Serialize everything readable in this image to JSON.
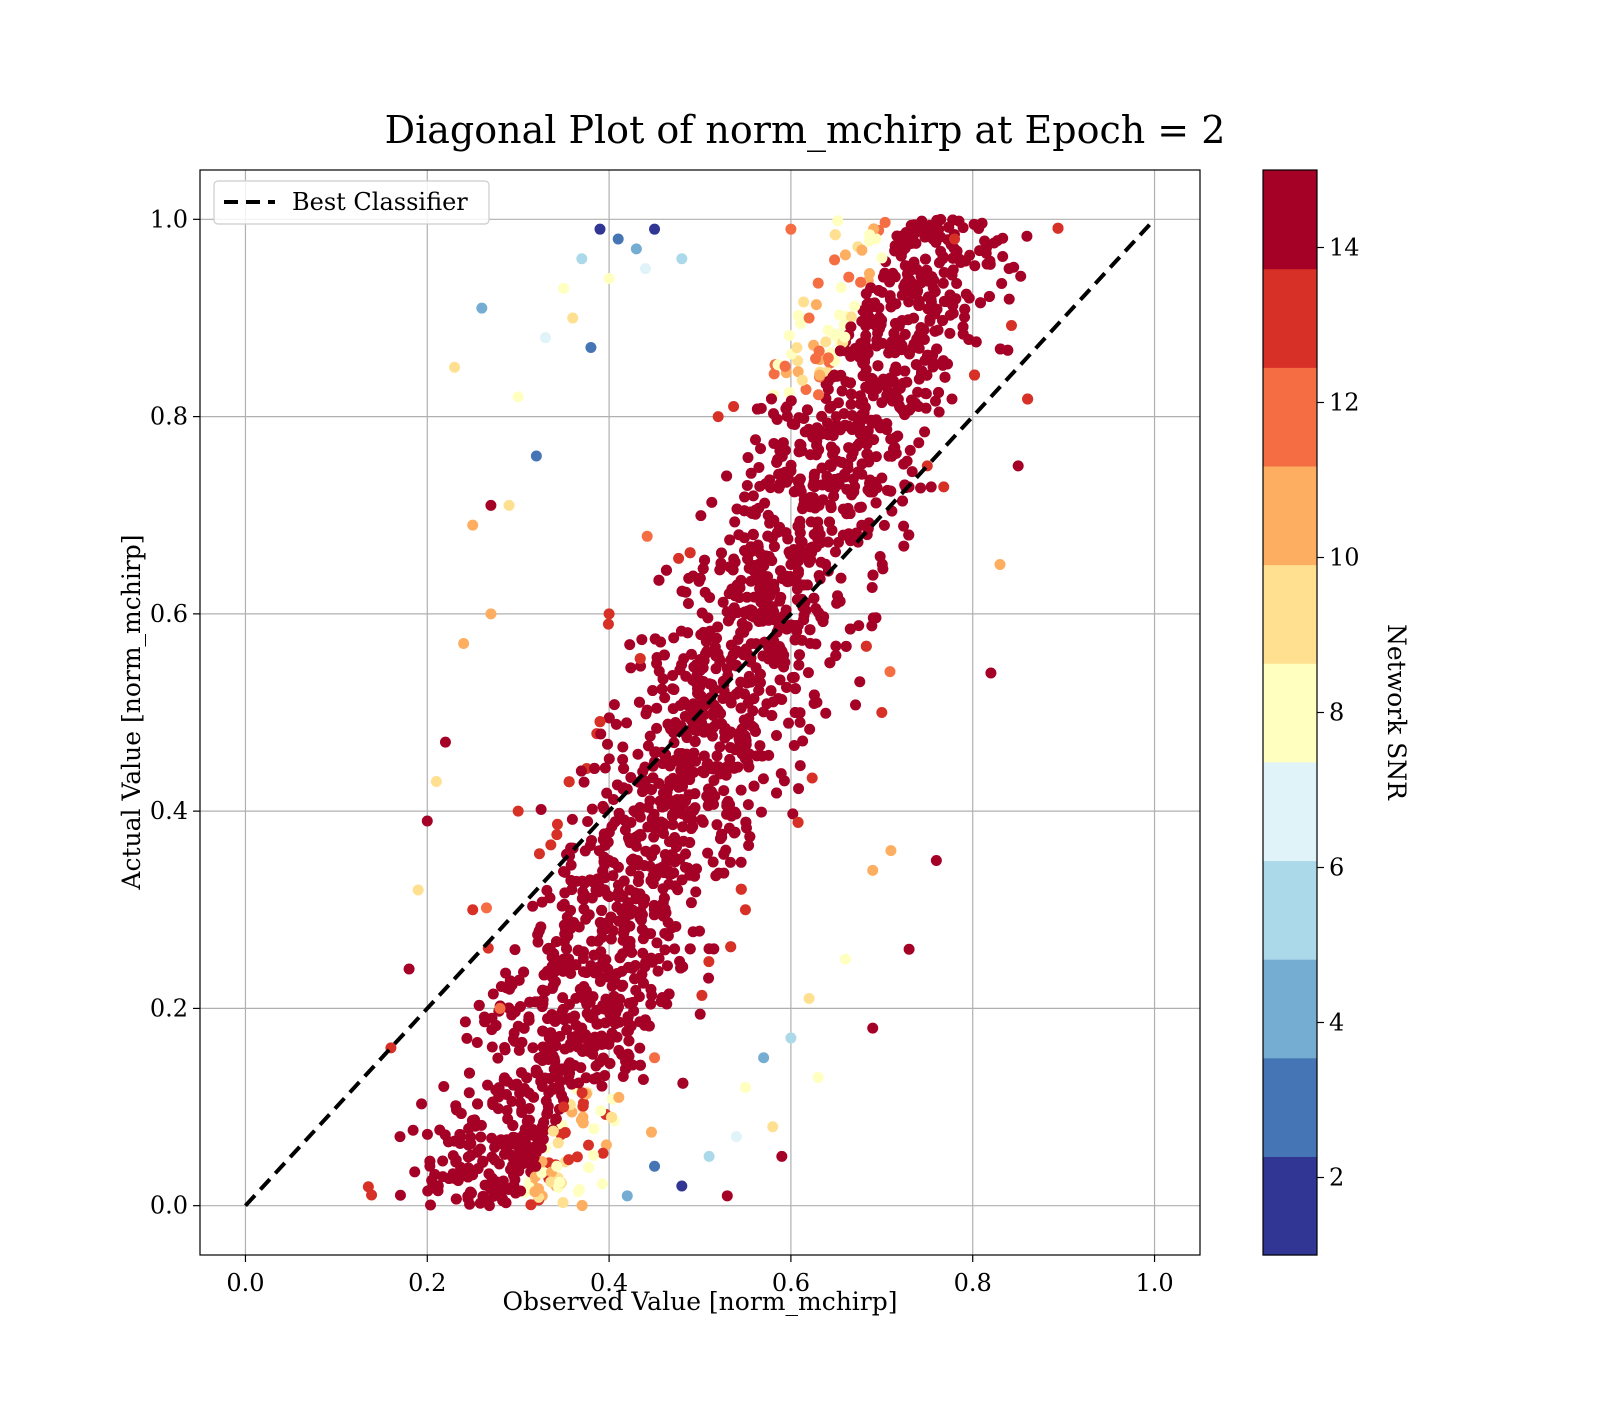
{
  "chart_data": {
    "type": "scatter",
    "title": "Diagonal Plot of norm_mchirp at Epoch = 2",
    "xlabel": "Observed Value [norm_mchirp]",
    "ylabel": "Actual Value [norm_mchirp]",
    "xlim": [
      -0.05,
      1.05
    ],
    "ylim": [
      -0.05,
      1.05
    ],
    "xticks": [
      0.0,
      0.2,
      0.4,
      0.6,
      0.8,
      1.0
    ],
    "xtick_labels": [
      "0.0",
      "0.2",
      "0.4",
      "0.6",
      "0.8",
      "1.0"
    ],
    "yticks": [
      0.0,
      0.2,
      0.4,
      0.6,
      0.8,
      1.0
    ],
    "ytick_labels": [
      "0.0",
      "0.2",
      "0.4",
      "0.6",
      "0.8",
      "1.0"
    ],
    "grid": true,
    "legend": {
      "placement": "upper-left",
      "entries": [
        {
          "label": "Best Classifier",
          "style": "dashed",
          "color": "#000000"
        }
      ]
    },
    "reference_line": {
      "name": "Best Classifier",
      "x": [
        0.0,
        1.0
      ],
      "y": [
        0.0,
        1.0
      ]
    },
    "colorbar": {
      "label": "Network SNR",
      "range": [
        1,
        15
      ],
      "ticks": [
        2,
        4,
        6,
        8,
        10,
        12,
        14
      ],
      "tick_labels": [
        "2",
        "4",
        "6",
        "8",
        "10",
        "12",
        "14"
      ],
      "colors": [
        "#313695",
        "#4575b4",
        "#74add1",
        "#abd9e9",
        "#e0f3f8",
        "#ffffbf",
        "#fee090",
        "#fdae61",
        "#f46d43",
        "#d73027",
        "#a50026"
      ],
      "cmap": "RdYlBu_r"
    },
    "points": [
      {
        "x": 0.39,
        "y": 0.99,
        "snr": 1.5
      },
      {
        "x": 0.41,
        "y": 0.98,
        "snr": 3.5
      },
      {
        "x": 0.43,
        "y": 0.97,
        "snr": 4.5
      },
      {
        "x": 0.45,
        "y": 0.99,
        "snr": 2.0
      },
      {
        "x": 0.37,
        "y": 0.96,
        "snr": 5.0
      },
      {
        "x": 0.44,
        "y": 0.95,
        "snr": 6.5
      },
      {
        "x": 0.4,
        "y": 0.94,
        "snr": 7.5
      },
      {
        "x": 0.35,
        "y": 0.93,
        "snr": 8.5
      },
      {
        "x": 0.48,
        "y": 0.96,
        "snr": 5.5
      },
      {
        "x": 0.36,
        "y": 0.9,
        "snr": 9.0
      },
      {
        "x": 0.33,
        "y": 0.88,
        "snr": 7.0
      },
      {
        "x": 0.38,
        "y": 0.87,
        "snr": 3.0
      },
      {
        "x": 0.26,
        "y": 0.91,
        "snr": 4.0
      },
      {
        "x": 0.23,
        "y": 0.85,
        "snr": 9.0
      },
      {
        "x": 0.3,
        "y": 0.82,
        "snr": 7.5
      },
      {
        "x": 0.32,
        "y": 0.76,
        "snr": 2.5
      },
      {
        "x": 0.29,
        "y": 0.71,
        "snr": 9.5
      },
      {
        "x": 0.25,
        "y": 0.69,
        "snr": 10.0
      },
      {
        "x": 0.27,
        "y": 0.6,
        "snr": 10.5
      },
      {
        "x": 0.24,
        "y": 0.57,
        "snr": 11.0
      },
      {
        "x": 0.21,
        "y": 0.43,
        "snr": 9.0
      },
      {
        "x": 0.19,
        "y": 0.32,
        "snr": 9.5
      },
      {
        "x": 0.45,
        "y": 0.04,
        "snr": 3.5
      },
      {
        "x": 0.48,
        "y": 0.02,
        "snr": 2.0
      },
      {
        "x": 0.51,
        "y": 0.05,
        "snr": 5.5
      },
      {
        "x": 0.54,
        "y": 0.07,
        "snr": 6.5
      },
      {
        "x": 0.55,
        "y": 0.12,
        "snr": 7.5
      },
      {
        "x": 0.57,
        "y": 0.15,
        "snr": 4.5
      },
      {
        "x": 0.6,
        "y": 0.17,
        "snr": 6.0
      },
      {
        "x": 0.63,
        "y": 0.13,
        "snr": 8.0
      },
      {
        "x": 0.62,
        "y": 0.21,
        "snr": 9.0
      },
      {
        "x": 0.66,
        "y": 0.25,
        "snr": 8.5
      },
      {
        "x": 0.69,
        "y": 0.34,
        "snr": 10.0
      },
      {
        "x": 0.71,
        "y": 0.36,
        "snr": 10.5
      },
      {
        "x": 0.58,
        "y": 0.08,
        "snr": 9.5
      },
      {
        "x": 0.42,
        "y": 0.01,
        "snr": 4.0
      },
      {
        "x": 0.84,
        "y": 0.95,
        "snr": 14.5
      },
      {
        "x": 0.85,
        "y": 0.75,
        "snr": 14.5
      },
      {
        "x": 0.83,
        "y": 0.65,
        "snr": 10.5
      },
      {
        "x": 0.82,
        "y": 0.54,
        "snr": 14.5
      },
      {
        "x": 0.76,
        "y": 0.35,
        "snr": 14.5
      },
      {
        "x": 0.73,
        "y": 0.26,
        "snr": 14.5
      },
      {
        "x": 0.69,
        "y": 0.18,
        "snr": 14.5
      },
      {
        "x": 0.59,
        "y": 0.05,
        "snr": 14.5
      },
      {
        "x": 0.53,
        "y": 0.01,
        "snr": 14.5
      },
      {
        "x": 0.17,
        "y": 0.07,
        "snr": 14.5
      },
      {
        "x": 0.16,
        "y": 0.16,
        "snr": 13.0
      },
      {
        "x": 0.18,
        "y": 0.24,
        "snr": 14.5
      },
      {
        "x": 0.2,
        "y": 0.39,
        "snr": 14.5
      },
      {
        "x": 0.22,
        "y": 0.47,
        "snr": 14.5
      },
      {
        "x": 0.27,
        "y": 0.71,
        "snr": 14.5
      },
      {
        "x": 0.78,
        "y": 0.98,
        "snr": 12.5
      },
      {
        "x": 0.74,
        "y": 0.99,
        "snr": 14.5
      },
      {
        "x": 0.6,
        "y": 0.99,
        "snr": 11.5
      },
      {
        "x": 0.28,
        "y": 0.2,
        "snr": 12.0
      },
      {
        "x": 0.3,
        "y": 0.4,
        "snr": 13.0
      },
      {
        "x": 0.4,
        "y": 0.6,
        "snr": 12.5
      },
      {
        "x": 0.52,
        "y": 0.8,
        "snr": 13.0
      },
      {
        "x": 0.62,
        "y": 0.9,
        "snr": 12.0
      },
      {
        "x": 0.7,
        "y": 0.5,
        "snr": 13.0
      },
      {
        "x": 0.55,
        "y": 0.3,
        "snr": 12.5
      },
      {
        "x": 0.45,
        "y": 0.15,
        "snr": 12.0
      },
      {
        "x": 0.35,
        "y": 0.1,
        "snr": 13.0
      },
      {
        "x": 0.25,
        "y": 0.3,
        "snr": 12.5
      },
      {
        "x": 0.75,
        "y": 0.75,
        "snr": 13.0
      },
      {
        "x": 0.5,
        "y": 0.5,
        "snr": 14.5
      },
      {
        "x": 0.4,
        "y": 0.35,
        "snr": 14.5
      },
      {
        "x": 0.6,
        "y": 0.65,
        "snr": 14.5
      },
      {
        "x": 0.65,
        "y": 0.8,
        "snr": 14.5
      },
      {
        "x": 0.35,
        "y": 0.25,
        "snr": 14.5
      },
      {
        "x": 0.45,
        "y": 0.45,
        "snr": 14.5
      },
      {
        "x": 0.55,
        "y": 0.6,
        "snr": 14.5
      }
    ]
  }
}
